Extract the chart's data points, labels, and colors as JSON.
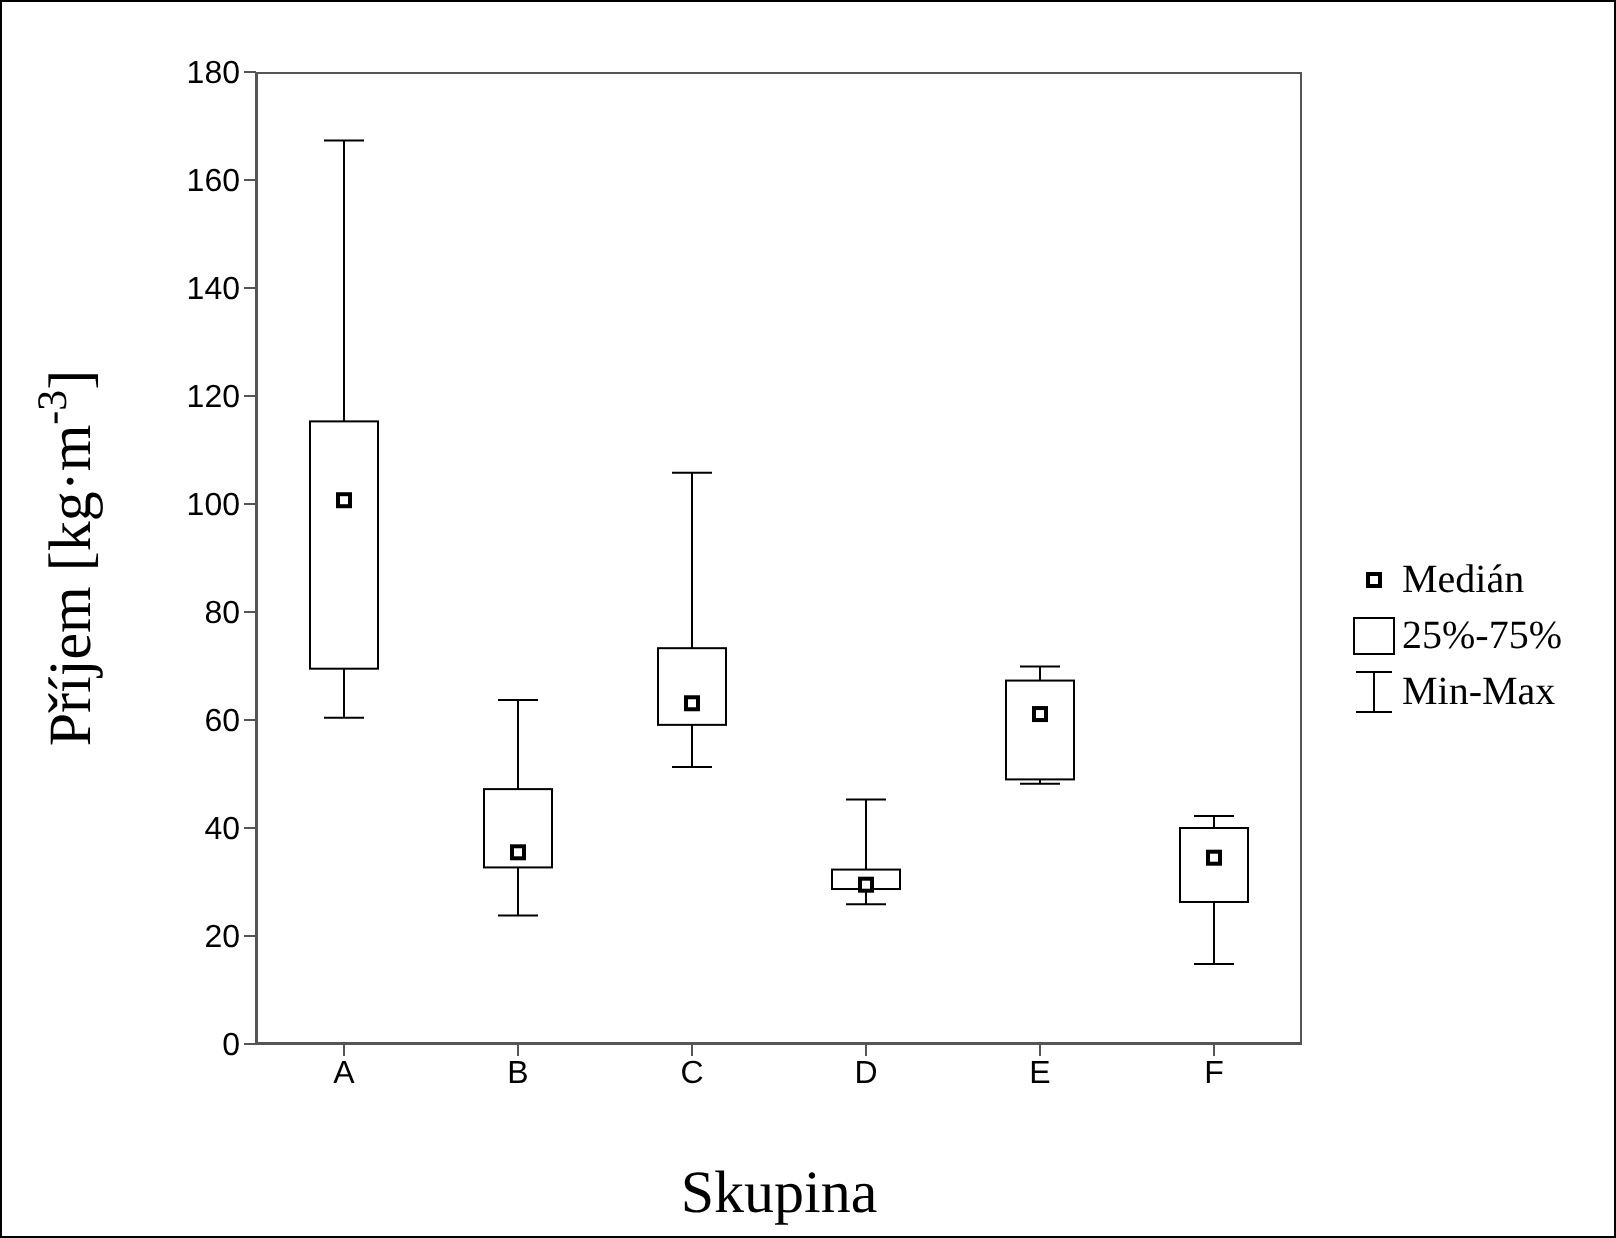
{
  "chart_data": {
    "type": "box",
    "xlabel": "Skupina",
    "ylabel": "Příjem [kg·m$^{-3}$]",
    "categories": [
      "A",
      "B",
      "C",
      "D",
      "E",
      "F"
    ],
    "boxes": [
      {
        "low": 60.4,
        "q1": 69.5,
        "median": 100.7,
        "q3": 115.3,
        "high": 167.3
      },
      {
        "low": 23.8,
        "q1": 32.7,
        "median": 35.5,
        "q3": 47.2,
        "high": 63.7
      },
      {
        "low": 51.3,
        "q1": 59.1,
        "median": 63.1,
        "q3": 73.3,
        "high": 105.8
      },
      {
        "low": 25.9,
        "q1": 28.7,
        "median": 29.5,
        "q3": 32.3,
        "high": 45.3
      },
      {
        "low": 48.2,
        "q1": 49.0,
        "median": 61.1,
        "q3": 67.3,
        "high": 69.9
      },
      {
        "low": 14.8,
        "q1": 26.3,
        "median": 34.5,
        "q3": 40.0,
        "high": 42.2
      }
    ],
    "color": "#000000",
    "marker": "square",
    "ylim": [
      0,
      180
    ],
    "yticks": [
      0,
      20,
      40,
      60,
      80,
      100,
      120,
      140,
      160,
      180
    ],
    "grid": false,
    "annotations": [
      "Medián",
      "25%-75%",
      "Min-Max"
    ]
  }
}
